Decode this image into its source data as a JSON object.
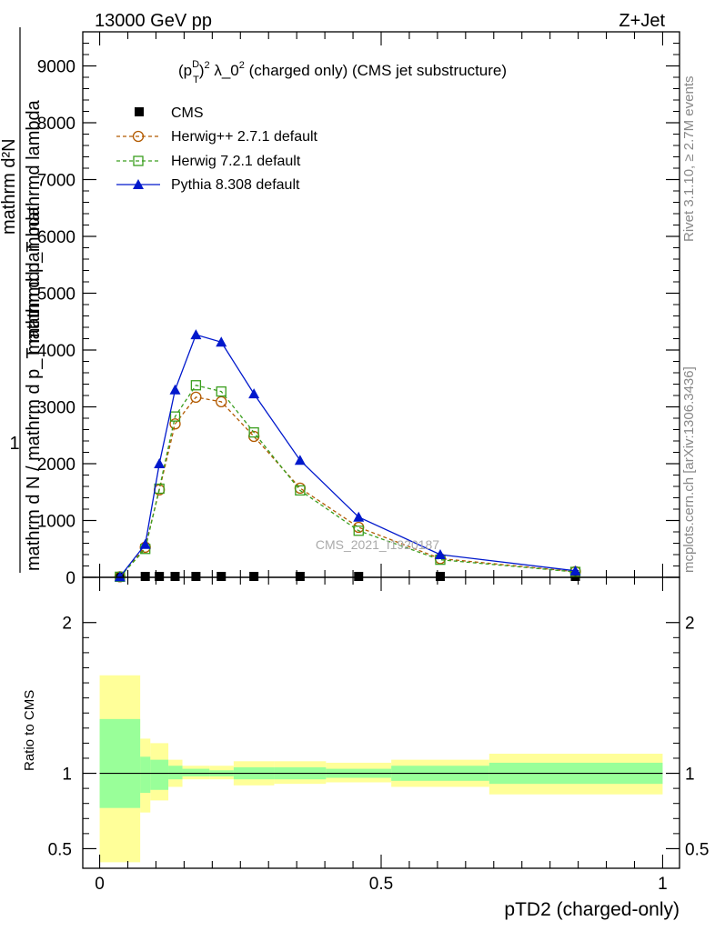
{
  "header": {
    "left": "13000 GeV pp",
    "right": "Z+Jet"
  },
  "plot_title": {
    "prefix": "(p",
    "sup_D": "D",
    "sub_T": "T",
    "mid": ")",
    "sup_2a": "2",
    "lambda": " λ_0",
    "sup_2b": "2",
    "rest": " (charged only) (CMS jet substructure)"
  },
  "ylabel": {
    "one": "1",
    "line1": "mathrm d N / mathrm d p_T mathrmd lambda",
    "line2": "mathrm d²N",
    "line3": "mathrm d p_T mathrmd lambda"
  },
  "side": {
    "rivet": "Rivet 3.1.10, ≥ 2.7M events",
    "mcplots": "mcplots.cern.ch [arXiv:1306.3436]"
  },
  "watermark": "CMS_2021_I1920187",
  "xlabel": "pTD2 (charged-only)",
  "ratio_ylabel": "Ratio to CMS",
  "colors": {
    "herwigpp": "#b25a00",
    "herwig7": "#3a9e1e",
    "pythia": "#0018cc",
    "band_inner": "#99ff99",
    "band_outer": "#ffff99"
  },
  "chart_data": [
    {
      "type": "line",
      "xlim": [
        -0.03,
        1.03
      ],
      "ylim": [
        0,
        9600
      ],
      "yticks": [
        0,
        1000,
        2000,
        3000,
        4000,
        5000,
        6000,
        7000,
        8000,
        9000
      ],
      "ytick_labels": [
        "0",
        "1000",
        "2000",
        "3000",
        "4000",
        "5000",
        "6000",
        "7000",
        "8000",
        "9000"
      ],
      "xticks": [
        0,
        0.5,
        1
      ],
      "xtick_labels": [
        "0",
        "0.5",
        "1"
      ],
      "series": [
        {
          "name": "CMS",
          "marker": "square-filled",
          "x": [
            0.036,
            0.081,
            0.106,
            0.134,
            0.171,
            0.216,
            0.274,
            0.356,
            0.46,
            0.605,
            0.845
          ],
          "y": [
            0,
            0,
            0,
            0,
            0,
            0,
            0,
            0,
            0,
            0,
            0
          ]
        },
        {
          "name": "Herwig++ 2.7.1 default",
          "marker": "circle-open",
          "x": [
            0.036,
            0.081,
            0.106,
            0.134,
            0.171,
            0.216,
            0.274,
            0.356,
            0.46,
            0.605,
            0.845
          ],
          "y": [
            10,
            530,
            1540,
            2700,
            3170,
            3090,
            2480,
            1570,
            880,
            330,
            100
          ]
        },
        {
          "name": "Herwig 7.2.1 default",
          "marker": "square-open",
          "x": [
            0.036,
            0.081,
            0.106,
            0.134,
            0.171,
            0.216,
            0.274,
            0.356,
            0.46,
            0.605,
            0.845
          ],
          "y": [
            10,
            500,
            1560,
            2830,
            3380,
            3270,
            2550,
            1530,
            820,
            310,
            95
          ]
        },
        {
          "name": "Pythia 8.308 default",
          "marker": "triangle-filled",
          "x": [
            0.036,
            0.081,
            0.106,
            0.134,
            0.171,
            0.216,
            0.274,
            0.356,
            0.46,
            0.605,
            0.845
          ],
          "y": [
            10,
            580,
            2000,
            3300,
            4270,
            4140,
            3230,
            2060,
            1060,
            400,
            115
          ]
        }
      ]
    },
    {
      "type": "area",
      "xlim": [
        -0.03,
        1.03
      ],
      "ylim": [
        0.37,
        2.3
      ],
      "yticks": [
        0.5,
        1,
        2
      ],
      "ytick_labels": [
        "0.5",
        "1",
        "2"
      ],
      "xticks": [
        0,
        0.5,
        1
      ],
      "xtick_labels": [
        "0",
        "0.5",
        "1"
      ],
      "bins": [
        {
          "x0": 0.0,
          "x1": 0.072,
          "outer": [
            0.41,
            1.65
          ],
          "inner": [
            0.77,
            1.36
          ]
        },
        {
          "x0": 0.072,
          "x1": 0.09,
          "outer": [
            0.74,
            1.23
          ],
          "inner": [
            0.87,
            1.11
          ]
        },
        {
          "x0": 0.09,
          "x1": 0.122,
          "outer": [
            0.82,
            1.2
          ],
          "inner": [
            0.89,
            1.09
          ]
        },
        {
          "x0": 0.122,
          "x1": 0.147,
          "outer": [
            0.91,
            1.09
          ],
          "inner": [
            0.96,
            1.05
          ]
        },
        {
          "x0": 0.147,
          "x1": 0.195,
          "outer": [
            0.96,
            1.05
          ],
          "inner": [
            0.98,
            1.03
          ]
        },
        {
          "x0": 0.195,
          "x1": 0.238,
          "outer": [
            0.96,
            1.05
          ],
          "inner": [
            0.98,
            1.02
          ]
        },
        {
          "x0": 0.238,
          "x1": 0.31,
          "outer": [
            0.92,
            1.08
          ],
          "inner": [
            0.96,
            1.04
          ]
        },
        {
          "x0": 0.31,
          "x1": 0.402,
          "outer": [
            0.93,
            1.08
          ],
          "inner": [
            0.96,
            1.04
          ]
        },
        {
          "x0": 0.402,
          "x1": 0.518,
          "outer": [
            0.94,
            1.07
          ],
          "inner": [
            0.97,
            1.03
          ]
        },
        {
          "x0": 0.518,
          "x1": 0.692,
          "outer": [
            0.91,
            1.09
          ],
          "inner": [
            0.95,
            1.05
          ]
        },
        {
          "x0": 0.692,
          "x1": 1.0,
          "outer": [
            0.86,
            1.13
          ],
          "inner": [
            0.93,
            1.07
          ]
        }
      ],
      "reference": 1
    }
  ]
}
